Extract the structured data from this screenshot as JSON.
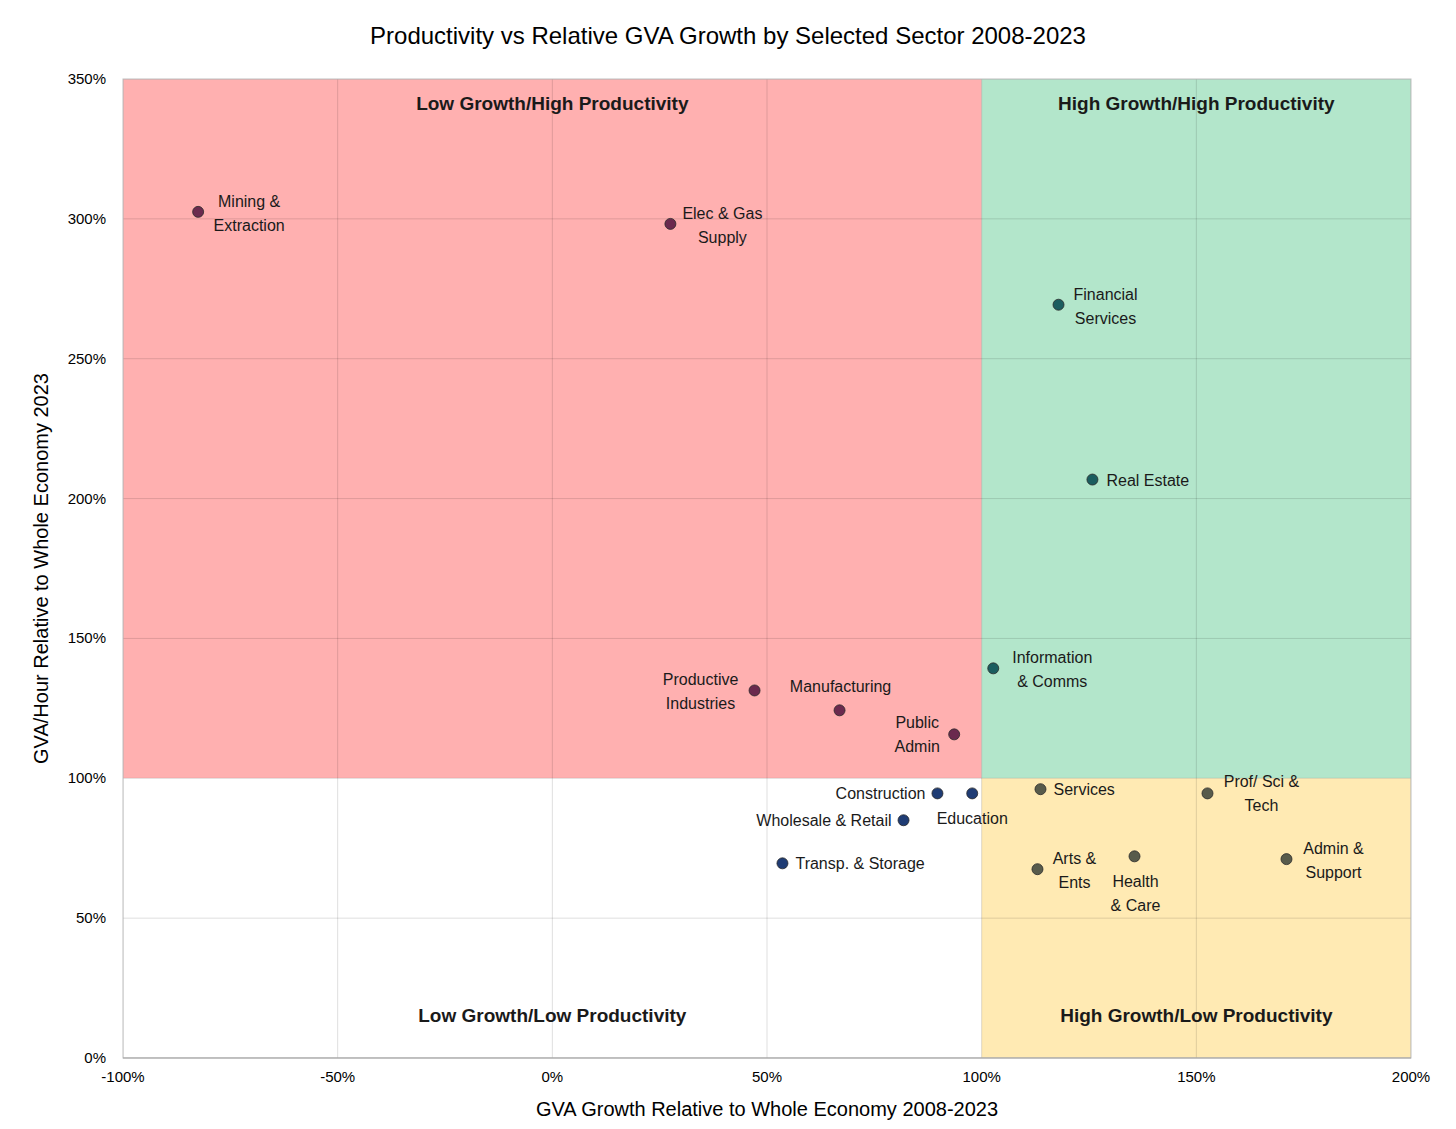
{
  "chart_data": {
    "type": "scatter",
    "title": "Productivity vs Relative GVA Growth by Selected Sector 2008-2023",
    "x_label": "GVA Growth Relative to Whole Economy 2008-2023",
    "y_label": "GVA/Hour Relative to Whole Economy 2023",
    "xlim": [
      -100,
      200
    ],
    "ylim": [
      0,
      350
    ],
    "xticks": [
      {
        "value": -100,
        "label": "-100%"
      },
      {
        "value": -50,
        "label": "-50%"
      },
      {
        "value": 0,
        "label": "0%"
      },
      {
        "value": 50,
        "label": "50%"
      },
      {
        "value": 100,
        "label": "100%"
      },
      {
        "value": 150,
        "label": "150%"
      },
      {
        "value": 200,
        "label": "200%"
      }
    ],
    "yticks": [
      {
        "value": 0,
        "label": "0%"
      },
      {
        "value": 50,
        "label": "50%"
      },
      {
        "value": 100,
        "label": "100%"
      },
      {
        "value": 150,
        "label": "150%"
      },
      {
        "value": 200,
        "label": "200%"
      },
      {
        "value": 250,
        "label": "250%"
      },
      {
        "value": 300,
        "label": "300%"
      },
      {
        "value": 350,
        "label": "350%"
      }
    ],
    "grid": true,
    "marker": "circle",
    "quadrants": [
      {
        "label": "Low Growth/High Productivity",
        "xlim": [
          -100,
          100
        ],
        "ylim": [
          100,
          350
        ],
        "color": "#ffb0b0"
      },
      {
        "label": "High Growth/High Productivity",
        "xlim": [
          100,
          200
        ],
        "ylim": [
          100,
          350
        ],
        "color": "#b3e6cb"
      },
      {
        "label": "Low Growth/Low Productivity",
        "xlim": [
          -100,
          100
        ],
        "ylim": [
          0,
          100
        ],
        "color": "#ffffff"
      },
      {
        "label": "High Growth/Low Productivity",
        "xlim": [
          100,
          200
        ],
        "ylim": [
          0,
          100
        ],
        "color": "#ffeab3"
      }
    ],
    "labels": [
      "Mining &\nExtraction",
      "Elec & Gas\nSupply",
      "Financial\nServices",
      "Real Estate",
      "Information\n& Comms",
      "Productive\nIndustries",
      "Manufacturing",
      "Public\nAdmin",
      "Construction",
      "Education",
      "Wholesale & Retail",
      "Transp. & Storage",
      "Services",
      "Prof/ Sci &\nTech",
      "Arts &\nEnts",
      "Health\n& Care",
      "Admin &\nSupport"
    ],
    "x": [
      -82.5,
      27.5,
      117.9,
      125.8,
      102.7,
      47.1,
      66.9,
      93.6,
      89.7,
      97.8,
      81.8,
      53.6,
      113.7,
      152.6,
      113.0,
      135.6,
      171.0
    ],
    "values": [
      302.5,
      298.2,
      269.3,
      206.8,
      139.3,
      131.4,
      124.3,
      115.7,
      94.6,
      94.6,
      85.0,
      69.6,
      96.1,
      94.6,
      67.5,
      72.1,
      71.1
    ],
    "colors": [
      "#6b2a4e",
      "#6b2a4e",
      "#1b5d5f",
      "#1b5d5f",
      "#1b5d5f",
      "#6b2a4e",
      "#6b2a4e",
      "#6b2a4e",
      "#1f3c74",
      "#1f3c74",
      "#1f3c74",
      "#1f3c74",
      "#585b4b",
      "#585b4b",
      "#585b4b",
      "#585b4b",
      "#585b4b"
    ]
  }
}
